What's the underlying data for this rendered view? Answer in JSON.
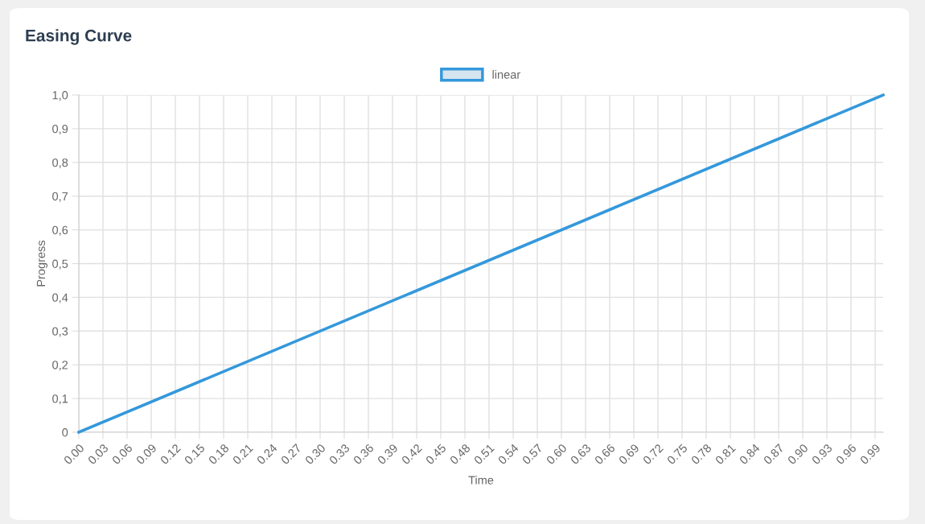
{
  "chart_data": {
    "type": "line",
    "title": "Easing Curve",
    "xlabel": "Time",
    "ylabel": "Progress",
    "x": [
      0,
      1
    ],
    "series": [
      {
        "name": "linear",
        "color": "#3498db",
        "values": [
          0,
          1
        ]
      }
    ],
    "xlim": [
      0,
      1
    ],
    "xticks": [
      {
        "value": 0.0,
        "label": "0.00"
      },
      {
        "value": 0.03,
        "label": "0.03"
      },
      {
        "value": 0.06,
        "label": "0.06"
      },
      {
        "value": 0.09,
        "label": "0.09"
      },
      {
        "value": 0.12,
        "label": "0.12"
      },
      {
        "value": 0.15,
        "label": "0.15"
      },
      {
        "value": 0.18,
        "label": "0.18"
      },
      {
        "value": 0.21,
        "label": "0.21"
      },
      {
        "value": 0.24,
        "label": "0.24"
      },
      {
        "value": 0.27,
        "label": "0.27"
      },
      {
        "value": 0.3,
        "label": "0.30"
      },
      {
        "value": 0.33,
        "label": "0.33"
      },
      {
        "value": 0.36,
        "label": "0.36"
      },
      {
        "value": 0.39,
        "label": "0.39"
      },
      {
        "value": 0.42,
        "label": "0.42"
      },
      {
        "value": 0.45,
        "label": "0.45"
      },
      {
        "value": 0.48,
        "label": "0.48"
      },
      {
        "value": 0.51,
        "label": "0.51"
      },
      {
        "value": 0.54,
        "label": "0.54"
      },
      {
        "value": 0.57,
        "label": "0.57"
      },
      {
        "value": 0.6,
        "label": "0.60"
      },
      {
        "value": 0.63,
        "label": "0.63"
      },
      {
        "value": 0.66,
        "label": "0.66"
      },
      {
        "value": 0.69,
        "label": "0.69"
      },
      {
        "value": 0.72,
        "label": "0.72"
      },
      {
        "value": 0.75,
        "label": "0.75"
      },
      {
        "value": 0.78,
        "label": "0.78"
      },
      {
        "value": 0.81,
        "label": "0.81"
      },
      {
        "value": 0.84,
        "label": "0.84"
      },
      {
        "value": 0.87,
        "label": "0.87"
      },
      {
        "value": 0.9,
        "label": "0.90"
      },
      {
        "value": 0.93,
        "label": "0.93"
      },
      {
        "value": 0.96,
        "label": "0.96"
      },
      {
        "value": 0.99,
        "label": "0.99"
      }
    ],
    "ylim": [
      0,
      1
    ],
    "yticks": [
      0,
      {
        "value": 0.1,
        "label": "0,1"
      },
      {
        "value": 0.2,
        "label": "0,2"
      },
      {
        "value": 0.3,
        "label": "0,3"
      },
      {
        "value": 0.4,
        "label": "0,4"
      },
      {
        "value": 0.5,
        "label": "0,5"
      },
      {
        "value": 0.6,
        "label": "0,6"
      },
      {
        "value": 0.7,
        "label": "0,7"
      },
      {
        "value": 0.8,
        "label": "0,8"
      },
      {
        "value": 0.9,
        "label": "0,9"
      },
      {
        "value": 1.0,
        "label": "1,0"
      }
    ],
    "grid": true,
    "legend": "top",
    "marker": "none",
    "line_style": "solid"
  }
}
